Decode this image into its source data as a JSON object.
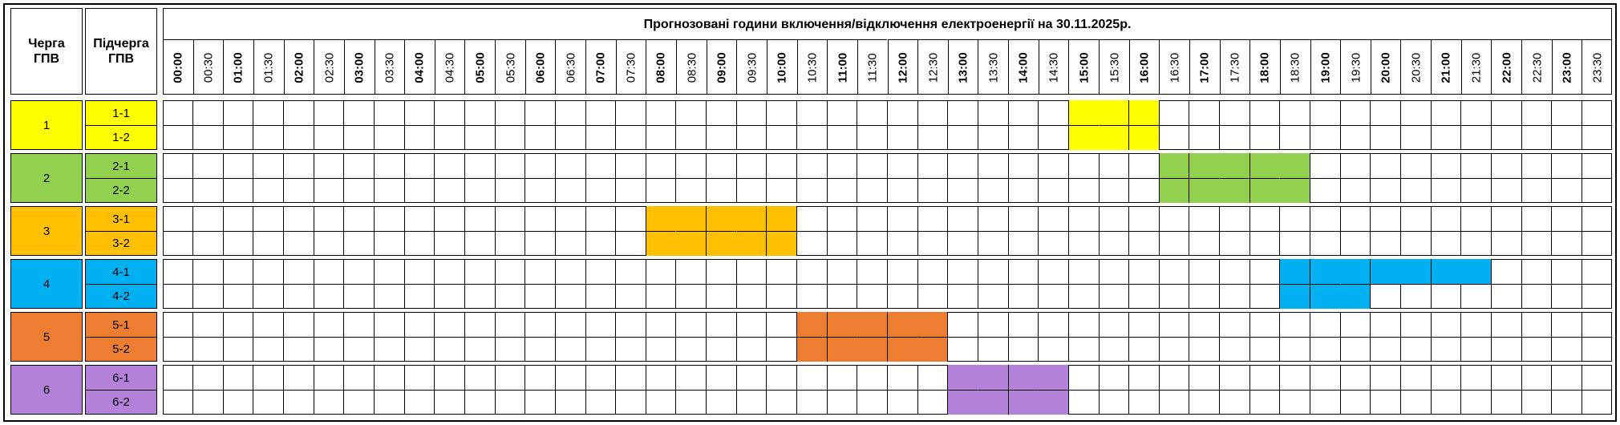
{
  "header": {
    "queue": "Черга ГПВ",
    "subqueue": "Підчерга ГПВ",
    "title": "Прогнозовані години включення/відключення електроенергії на 30.11.2025р.",
    "times": [
      "00:00",
      "00:30",
      "01:00",
      "01:30",
      "02:00",
      "02:30",
      "03:00",
      "03:30",
      "04:00",
      "04:30",
      "05:00",
      "05:30",
      "06:00",
      "06:30",
      "07:00",
      "07:30",
      "08:00",
      "08:30",
      "09:00",
      "09:30",
      "10:00",
      "10:30",
      "11:00",
      "11:30",
      "12:00",
      "12:30",
      "13:00",
      "13:30",
      "14:00",
      "14:30",
      "15:00",
      "15:30",
      "16:00",
      "16:30",
      "17:00",
      "17:30",
      "18:00",
      "18:30",
      "19:00",
      "19:30",
      "20:00",
      "20:30",
      "21:00",
      "21:30",
      "22:00",
      "22:30",
      "23:00",
      "23:30"
    ]
  },
  "groups": [
    {
      "label": "1",
      "color": "#ffff00",
      "subgroups": [
        {
          "label": "1-1",
          "slots": [
            0,
            0,
            0,
            0,
            0,
            0,
            0,
            0,
            0,
            0,
            0,
            0,
            0,
            0,
            0,
            0,
            0,
            0,
            0,
            0,
            0,
            0,
            0,
            0,
            0,
            0,
            0,
            0,
            0,
            0,
            1,
            1,
            1,
            0,
            0,
            0,
            0,
            0,
            0,
            0,
            0,
            0,
            0,
            0,
            0,
            0,
            0,
            0
          ]
        },
        {
          "label": "1-2",
          "slots": [
            0,
            0,
            0,
            0,
            0,
            0,
            0,
            0,
            0,
            0,
            0,
            0,
            0,
            0,
            0,
            0,
            0,
            0,
            0,
            0,
            0,
            0,
            0,
            0,
            0,
            0,
            0,
            0,
            0,
            0,
            1,
            1,
            1,
            0,
            0,
            0,
            0,
            0,
            0,
            0,
            0,
            0,
            0,
            0,
            0,
            0,
            0,
            0
          ]
        }
      ]
    },
    {
      "label": "2",
      "color": "#92d050",
      "subgroups": [
        {
          "label": "2-1",
          "slots": [
            0,
            0,
            0,
            0,
            0,
            0,
            0,
            0,
            0,
            0,
            0,
            0,
            0,
            0,
            0,
            0,
            0,
            0,
            0,
            0,
            0,
            0,
            0,
            0,
            0,
            0,
            0,
            0,
            0,
            0,
            0,
            0,
            0,
            1,
            1,
            1,
            1,
            1,
            0,
            0,
            0,
            0,
            0,
            0,
            0,
            0,
            0,
            0
          ]
        },
        {
          "label": "2-2",
          "slots": [
            0,
            0,
            0,
            0,
            0,
            0,
            0,
            0,
            0,
            0,
            0,
            0,
            0,
            0,
            0,
            0,
            0,
            0,
            0,
            0,
            0,
            0,
            0,
            0,
            0,
            0,
            0,
            0,
            0,
            0,
            0,
            0,
            0,
            1,
            1,
            1,
            1,
            1,
            0,
            0,
            0,
            0,
            0,
            0,
            0,
            0,
            0,
            0
          ]
        }
      ]
    },
    {
      "label": "3",
      "color": "#ffc000",
      "subgroups": [
        {
          "label": "3-1",
          "slots": [
            0,
            0,
            0,
            0,
            0,
            0,
            0,
            0,
            0,
            0,
            0,
            0,
            0,
            0,
            0,
            0,
            1,
            1,
            1,
            1,
            1,
            0,
            0,
            0,
            0,
            0,
            0,
            0,
            0,
            0,
            0,
            0,
            0,
            0,
            0,
            0,
            0,
            0,
            0,
            0,
            0,
            0,
            0,
            0,
            0,
            0,
            0,
            0
          ]
        },
        {
          "label": "3-2",
          "slots": [
            0,
            0,
            0,
            0,
            0,
            0,
            0,
            0,
            0,
            0,
            0,
            0,
            0,
            0,
            0,
            0,
            1,
            1,
            1,
            1,
            1,
            0,
            0,
            0,
            0,
            0,
            0,
            0,
            0,
            0,
            0,
            0,
            0,
            0,
            0,
            0,
            0,
            0,
            0,
            0,
            0,
            0,
            0,
            0,
            0,
            0,
            0,
            0
          ]
        }
      ]
    },
    {
      "label": "4",
      "color": "#00b0f0",
      "subgroups": [
        {
          "label": "4-1",
          "slots": [
            0,
            0,
            0,
            0,
            0,
            0,
            0,
            0,
            0,
            0,
            0,
            0,
            0,
            0,
            0,
            0,
            0,
            0,
            0,
            0,
            0,
            0,
            0,
            0,
            0,
            0,
            0,
            0,
            0,
            0,
            0,
            0,
            0,
            0,
            0,
            0,
            0,
            1,
            1,
            1,
            1,
            1,
            1,
            1,
            0,
            0,
            0,
            0
          ]
        },
        {
          "label": "4-2",
          "slots": [
            0,
            0,
            0,
            0,
            0,
            0,
            0,
            0,
            0,
            0,
            0,
            0,
            0,
            0,
            0,
            0,
            0,
            0,
            0,
            0,
            0,
            0,
            0,
            0,
            0,
            0,
            0,
            0,
            0,
            0,
            0,
            0,
            0,
            0,
            0,
            0,
            0,
            1,
            1,
            1,
            0,
            0,
            0,
            0,
            0,
            0,
            0,
            0
          ]
        }
      ]
    },
    {
      "label": "5",
      "color": "#ed7d31",
      "subgroups": [
        {
          "label": "5-1",
          "slots": [
            0,
            0,
            0,
            0,
            0,
            0,
            0,
            0,
            0,
            0,
            0,
            0,
            0,
            0,
            0,
            0,
            0,
            0,
            0,
            0,
            0,
            1,
            1,
            1,
            1,
            1,
            0,
            0,
            0,
            0,
            0,
            0,
            0,
            0,
            0,
            0,
            0,
            0,
            0,
            0,
            0,
            0,
            0,
            0,
            0,
            0,
            0,
            0
          ]
        },
        {
          "label": "5-2",
          "slots": [
            0,
            0,
            0,
            0,
            0,
            0,
            0,
            0,
            0,
            0,
            0,
            0,
            0,
            0,
            0,
            0,
            0,
            0,
            0,
            0,
            0,
            1,
            1,
            1,
            1,
            1,
            0,
            0,
            0,
            0,
            0,
            0,
            0,
            0,
            0,
            0,
            0,
            0,
            0,
            0,
            0,
            0,
            0,
            0,
            0,
            0,
            0,
            0
          ]
        }
      ]
    },
    {
      "label": "6",
      "color": "#b381d9",
      "subgroups": [
        {
          "label": "6-1",
          "slots": [
            0,
            0,
            0,
            0,
            0,
            0,
            0,
            0,
            0,
            0,
            0,
            0,
            0,
            0,
            0,
            0,
            0,
            0,
            0,
            0,
            0,
            0,
            0,
            0,
            0,
            0,
            1,
            1,
            1,
            1,
            0,
            0,
            0,
            0,
            0,
            0,
            0,
            0,
            0,
            0,
            0,
            0,
            0,
            0,
            0,
            0,
            0,
            0
          ]
        },
        {
          "label": "6-2",
          "slots": [
            0,
            0,
            0,
            0,
            0,
            0,
            0,
            0,
            0,
            0,
            0,
            0,
            0,
            0,
            0,
            0,
            0,
            0,
            0,
            0,
            0,
            0,
            0,
            0,
            0,
            0,
            1,
            1,
            1,
            1,
            0,
            0,
            0,
            0,
            0,
            0,
            0,
            0,
            0,
            0,
            0,
            0,
            0,
            0,
            0,
            0,
            0,
            0
          ]
        }
      ]
    }
  ]
}
